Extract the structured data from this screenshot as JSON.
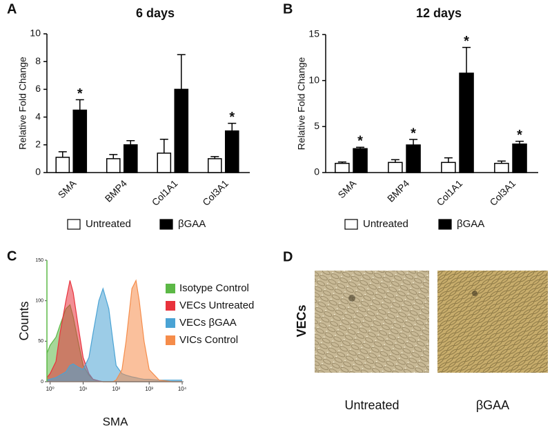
{
  "chart_data": [
    {
      "type": "bar",
      "panel_label": "A",
      "title": "6 days",
      "y_label": "Relative Fold Change",
      "categories": [
        "SMA",
        "BMP4",
        "Col1A1",
        "Col3A1"
      ],
      "series": [
        {
          "name": "Untreated",
          "color": "#ffffff",
          "values": [
            1.1,
            1.0,
            1.4,
            1.0
          ],
          "errors": [
            0.4,
            0.3,
            1.0,
            0.15
          ],
          "stars": [
            null,
            null,
            null,
            null
          ]
        },
        {
          "name": "βGAA",
          "color": "#000000",
          "values": [
            4.5,
            2.0,
            6.0,
            3.0
          ],
          "errors": [
            0.75,
            0.3,
            2.5,
            0.55
          ],
          "stars": [
            "*",
            null,
            null,
            "*"
          ]
        }
      ],
      "ylim": [
        0,
        10
      ],
      "yticks": [
        0,
        2,
        4,
        6,
        8,
        10
      ]
    },
    {
      "type": "bar",
      "panel_label": "B",
      "title": "12 days",
      "y_label": "Relative Fold Change",
      "categories": [
        "SMA",
        "BMP4",
        "Col1A1",
        "Col3A1"
      ],
      "series": [
        {
          "name": "Untreated",
          "color": "#ffffff",
          "values": [
            1.0,
            1.1,
            1.1,
            1.0
          ],
          "errors": [
            0.15,
            0.3,
            0.5,
            0.25
          ],
          "stars": [
            null,
            null,
            null,
            null
          ]
        },
        {
          "name": "βGAA",
          "color": "#000000",
          "values": [
            2.6,
            3.0,
            10.8,
            3.1
          ],
          "errors": [
            0.15,
            0.6,
            2.8,
            0.3
          ],
          "stars": [
            "*",
            "*",
            "*",
            "*"
          ]
        }
      ],
      "ylim": [
        0,
        15
      ],
      "yticks": [
        0,
        5,
        10,
        15
      ]
    },
    {
      "type": "area",
      "panel_label": "C",
      "x_label": "SMA",
      "y_label": "Counts",
      "log_x": true,
      "x": [
        0.8,
        1,
        1.5,
        2,
        3,
        4,
        5,
        7,
        10,
        15,
        20,
        30,
        40,
        60,
        80,
        100,
        150,
        200,
        300,
        400,
        500,
        700,
        1000,
        2000,
        5000,
        10000
      ],
      "series": [
        {
          "name": "Isotype Control",
          "color": "#5cb846",
          "values": [
            35,
            45,
            55,
            70,
            90,
            95,
            80,
            50,
            20,
            8,
            3,
            1,
            0,
            0,
            0,
            0,
            0,
            0,
            0,
            0,
            0,
            0,
            0,
            0,
            0,
            0
          ]
        },
        {
          "name": "VECs Untreated",
          "color": "#e8323c",
          "values": [
            5,
            10,
            25,
            60,
            100,
            125,
            110,
            70,
            30,
            10,
            3,
            1,
            0,
            0,
            0,
            0,
            0,
            0,
            0,
            0,
            0,
            0,
            0,
            0,
            0,
            0
          ]
        },
        {
          "name": "VECs βGAA",
          "color": "#4aa3d4",
          "values": [
            2,
            3,
            5,
            8,
            12,
            20,
            22,
            18,
            15,
            30,
            60,
            100,
            115,
            90,
            50,
            20,
            10,
            8,
            6,
            5,
            4,
            3,
            3,
            2,
            2,
            2
          ]
        },
        {
          "name": "VICs Control",
          "color": "#f58c4a",
          "values": [
            0,
            0,
            0,
            0,
            0,
            0,
            0,
            0,
            0,
            0,
            0,
            0,
            0,
            0,
            0,
            2,
            15,
            50,
            115,
            125,
            100,
            50,
            15,
            2,
            0,
            0
          ]
        }
      ],
      "xlim": [
        0.8,
        11000
      ],
      "xticks": [
        {
          "value": 1,
          "label": "10⁰"
        },
        {
          "value": 10,
          "label": "10¹"
        },
        {
          "value": 100,
          "label": "10²"
        },
        {
          "value": 1000,
          "label": "10³"
        },
        {
          "value": 10000,
          "label": "10⁴"
        }
      ],
      "ylim": [
        0,
        150
      ],
      "yticks": [
        0,
        50,
        100,
        150
      ]
    }
  ],
  "panel_d": {
    "panel_label": "D",
    "row_label": "VECs",
    "captions": [
      "Untreated",
      "βGAA"
    ]
  }
}
